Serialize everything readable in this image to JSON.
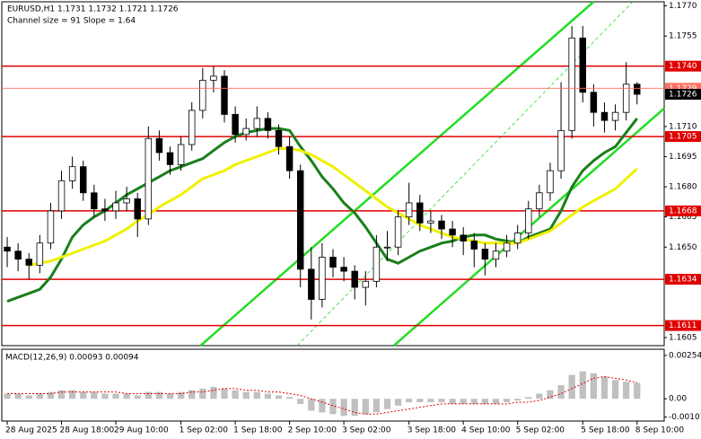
{
  "chart_data": [
    {
      "type": "candlestick",
      "title": "EURUSD,H1  1.1731 1.1732 1.1721 1.1726",
      "subtitle": "Channel size = 91 Slope = 1.64",
      "categories": [
        "28 Aug 2025",
        null,
        null,
        null,
        null,
        "28 Aug 18:00",
        null,
        null,
        null,
        null,
        "29 Aug 10:00",
        null,
        null,
        null,
        null,
        null,
        "1 Sep 02:00",
        null,
        null,
        null,
        null,
        "1 Sep 18:00",
        null,
        null,
        null,
        null,
        "2 Sep 10:00",
        null,
        null,
        null,
        null,
        "3 Sep 02:00",
        null,
        null,
        null,
        null,
        null,
        "3 Sep 18:00",
        null,
        null,
        null,
        null,
        "4 Sep 10:00",
        null,
        null,
        null,
        null,
        "5 Sep 02:00",
        null,
        null,
        null,
        null,
        null,
        "5 Sep 18:00",
        null,
        null,
        null,
        null,
        "8 Sep 10:00"
      ],
      "ohlc": [
        [
          1.165,
          1.1655,
          1.164,
          1.1648
        ],
        [
          1.1648,
          1.1652,
          1.1638,
          1.1644
        ],
        [
          1.1644,
          1.1647,
          1.1634,
          1.1641
        ],
        [
          1.1641,
          1.1656,
          1.1637,
          1.1652
        ],
        [
          1.1652,
          1.1672,
          1.1649,
          1.1668
        ],
        [
          1.1668,
          1.1688,
          1.1664,
          1.1683
        ],
        [
          1.1683,
          1.1695,
          1.1679,
          1.169
        ],
        [
          1.169,
          1.1693,
          1.1673,
          1.1677
        ],
        [
          1.1677,
          1.1681,
          1.1665,
          1.1669
        ],
        [
          1.1669,
          1.1674,
          1.1663,
          1.1668
        ],
        [
          1.1668,
          1.1678,
          1.1664,
          1.1672
        ],
        [
          1.1672,
          1.168,
          1.1668,
          1.1674
        ],
        [
          1.1674,
          1.1677,
          1.1655,
          1.1664
        ],
        [
          1.1664,
          1.171,
          1.1661,
          1.1704
        ],
        [
          1.1704,
          1.1708,
          1.1693,
          1.1697
        ],
        [
          1.1697,
          1.17,
          1.1686,
          1.1691
        ],
        [
          1.1691,
          1.1705,
          1.1688,
          1.1701
        ],
        [
          1.1701,
          1.1722,
          1.1698,
          1.1718
        ],
        [
          1.1718,
          1.1739,
          1.1714,
          1.1733
        ],
        [
          1.1733,
          1.174,
          1.1727,
          1.1735
        ],
        [
          1.1735,
          1.1738,
          1.1712,
          1.1716
        ],
        [
          1.1716,
          1.172,
          1.1702,
          1.1706
        ],
        [
          1.1706,
          1.1714,
          1.1703,
          1.1709
        ],
        [
          1.1709,
          1.172,
          1.1705,
          1.1714
        ],
        [
          1.1714,
          1.1717,
          1.1704,
          1.1708
        ],
        [
          1.1708,
          1.1711,
          1.1696,
          1.17
        ],
        [
          1.17,
          1.1705,
          1.1684,
          1.1688
        ],
        [
          1.1688,
          1.1691,
          1.163,
          1.1639
        ],
        [
          1.1639,
          1.165,
          1.1614,
          1.1624
        ],
        [
          1.1624,
          1.1652,
          1.162,
          1.1645
        ],
        [
          1.1645,
          1.1649,
          1.1635,
          1.164
        ],
        [
          1.164,
          1.1645,
          1.1633,
          1.1638
        ],
        [
          1.1638,
          1.1641,
          1.1624,
          1.163
        ],
        [
          1.163,
          1.1638,
          1.1621,
          1.1633
        ],
        [
          1.1633,
          1.1656,
          1.163,
          1.165
        ],
        [
          1.165,
          1.1658,
          1.1643,
          1.165
        ],
        [
          1.165,
          1.1668,
          1.1646,
          1.1665
        ],
        [
          1.1665,
          1.1682,
          1.1661,
          1.1672
        ],
        [
          1.1672,
          1.1676,
          1.1658,
          1.1662
        ],
        [
          1.1662,
          1.1668,
          1.1657,
          1.1663
        ],
        [
          1.1663,
          1.1666,
          1.1654,
          1.1659
        ],
        [
          1.1659,
          1.1663,
          1.165,
          1.1656
        ],
        [
          1.1656,
          1.166,
          1.1646,
          1.1653
        ],
        [
          1.1653,
          1.1657,
          1.164,
          1.1649
        ],
        [
          1.1649,
          1.1652,
          1.1636,
          1.1644
        ],
        [
          1.1644,
          1.1652,
          1.164,
          1.1648
        ],
        [
          1.1648,
          1.1656,
          1.1645,
          1.1652
        ],
        [
          1.1652,
          1.1661,
          1.1649,
          1.1657
        ],
        [
          1.1657,
          1.1673,
          1.1654,
          1.1669
        ],
        [
          1.1669,
          1.1681,
          1.1665,
          1.1677
        ],
        [
          1.1677,
          1.1692,
          1.1673,
          1.1688
        ],
        [
          1.1688,
          1.1732,
          1.1684,
          1.1708
        ],
        [
          1.1708,
          1.176,
          1.1704,
          1.1754
        ],
        [
          1.1754,
          1.176,
          1.1722,
          1.1727
        ],
        [
          1.1727,
          1.1731,
          1.171,
          1.1717
        ],
        [
          1.1717,
          1.1722,
          1.1707,
          1.1713
        ],
        [
          1.1713,
          1.1721,
          1.1708,
          1.1717
        ],
        [
          1.1717,
          1.1742,
          1.1713,
          1.1731
        ],
        [
          1.1731,
          1.1732,
          1.1721,
          1.1726
        ]
      ],
      "up_color": "#ffffff",
      "down_color": "#000000",
      "moving_averages": [
        {
          "color": "#1a7f1a",
          "values": [
            1.1623,
            1.1625,
            1.1627,
            1.1629,
            1.1635,
            1.1644,
            1.1655,
            1.1661,
            1.1665,
            1.1668,
            1.1672,
            1.1676,
            1.1679,
            1.1682,
            1.1685,
            1.1688,
            1.169,
            1.1692,
            1.1694,
            1.1698,
            1.1702,
            1.1705,
            1.1707,
            1.1708,
            1.1709,
            1.1709,
            1.1708,
            1.17,
            1.1693,
            1.1685,
            1.1679,
            1.1672,
            1.1667,
            1.166,
            1.1652,
            1.1644,
            1.1642,
            1.1645,
            1.1648,
            1.165,
            1.1652,
            1.1653,
            1.1655,
            1.1656,
            1.1656,
            1.1654,
            1.1653,
            1.1652,
            1.1655,
            1.1657,
            1.1659,
            1.1668,
            1.168,
            1.1688,
            1.1693,
            1.1697,
            1.17,
            1.1707,
            1.1714
          ]
        },
        {
          "color": "#f0f000",
          "values": [
            null,
            null,
            1.1641,
            1.1642,
            1.1643,
            1.1645,
            1.1647,
            1.1649,
            1.1651,
            1.1653,
            1.1656,
            1.1659,
            1.1663,
            1.1666,
            1.167,
            1.1673,
            1.1676,
            1.168,
            1.1684,
            1.1686,
            1.1688,
            1.1691,
            1.1693,
            1.1695,
            1.1697,
            1.1699,
            1.1699,
            1.1698,
            1.1696,
            1.1693,
            1.169,
            1.1686,
            1.1682,
            1.1678,
            1.1674,
            1.167,
            1.1667,
            1.1664,
            1.1661,
            1.1659,
            1.1657,
            1.1655,
            1.1654,
            1.1653,
            1.1652,
            1.1652,
            1.1652,
            1.1652,
            1.1654,
            1.1656,
            1.1658,
            1.1662,
            1.1666,
            1.167,
            1.1673,
            1.1676,
            1.1679,
            1.1684,
            1.1689
          ]
        }
      ],
      "channel": [
        {
          "color": "#22dd22",
          "dashed": false,
          "x": [
            17.8,
            54
          ],
          "values": [
            1.1601,
            1.1772
          ]
        },
        {
          "color": "#22dd22",
          "dashed": false,
          "x": [
            35.6,
            60.5
          ],
          "values": [
            1.1601,
            1.1719
          ]
        },
        {
          "color": "#22dd22",
          "dashed": true,
          "x": [
            26.7,
            57.6
          ],
          "values": [
            1.1601,
            1.1772
          ]
        }
      ],
      "levels": [
        {
          "value": 1.174,
          "label": "1.1740"
        },
        {
          "value": 1.1705,
          "label": "1.1705"
        },
        {
          "value": 1.1668,
          "label": "1.1668"
        },
        {
          "value": 1.1634,
          "label": "1.1634"
        },
        {
          "value": 1.1611,
          "label": "1.1611"
        }
      ],
      "level_color": "#e00000",
      "ask": {
        "value": 1.1729,
        "label": "1.1729",
        "color": "#ff7060"
      },
      "bid": {
        "value": 1.1726,
        "label": "1.1726",
        "color": "#000000"
      },
      "xlim": [
        -0.5,
        60.5
      ],
      "ylim": [
        1.1601,
        1.1772
      ],
      "yticks": [
        {
          "value": 1.177,
          "label": "1.1770"
        },
        1.1755,
        {
          "value": 1.171,
          "label": "1.1710"
        },
        1.1695,
        {
          "value": 1.168,
          "label": "1.1680"
        },
        1.1665,
        {
          "value": 1.165,
          "label": "1.1650"
        },
        1.1605
      ]
    },
    {
      "type": "macd",
      "title": "MACD(12,26,9) 0.00093 0.00094",
      "color": "#c0c0c0",
      "values": [
        0.0003,
        0.0003,
        0.0002,
        0.0003,
        0.0004,
        0.0005,
        0.0005,
        0.0004,
        0.0004,
        0.0003,
        0.0003,
        0.0003,
        0.0002,
        0.0004,
        0.0004,
        0.0003,
        0.0004,
        0.0005,
        0.0006,
        0.0007,
        0.0006,
        0.0005,
        0.0004,
        0.0004,
        0.0003,
        0.0002,
        0.0001,
        -0.0003,
        -0.0007,
        -0.0008,
        -0.0009,
        -0.001,
        -0.001,
        -0.0009,
        -0.0008,
        -0.0006,
        -0.0004,
        -0.0002,
        -0.0002,
        -0.0002,
        -0.0002,
        -0.0003,
        -0.0003,
        -0.0003,
        -0.0003,
        -0.0003,
        -0.0002,
        -0.0001,
        0.0001,
        0.0003,
        0.0005,
        0.0008,
        0.0014,
        0.0016,
        0.0015,
        0.0013,
        0.0011,
        0.001,
        0.00093
      ],
      "signal": {
        "color": "#e00000",
        "values": [
          0.0003,
          0.0003,
          0.0003,
          0.0003,
          0.0003,
          0.0004,
          0.0004,
          0.0004,
          0.0004,
          0.0004,
          0.0004,
          0.0003,
          0.0003,
          0.0003,
          0.0003,
          0.0003,
          0.0003,
          0.0004,
          0.0004,
          0.0005,
          0.0006,
          0.0006,
          0.0005,
          0.0005,
          0.0004,
          0.0004,
          0.0003,
          0.0002,
          0,
          -0.0002,
          -0.0004,
          -0.0006,
          -0.0008,
          -0.0009,
          -0.0009,
          -0.0008,
          -0.0007,
          -0.0006,
          -0.0005,
          -0.0004,
          -0.0003,
          -0.0003,
          -0.0003,
          -0.0003,
          -0.0003,
          -0.0003,
          -0.0003,
          -0.0002,
          -0.0002,
          -0.0001,
          0.0001,
          0.0003,
          0.0006,
          0.0009,
          0.0012,
          0.0013,
          0.0012,
          0.0011,
          0.00094
        ]
      },
      "ylim": [
        -0.00125,
        0.00285
      ],
      "yticks": [
        0.00254,
        {
          "value": 0,
          "label": "0.00"
        },
        -0.00107
      ]
    }
  ]
}
